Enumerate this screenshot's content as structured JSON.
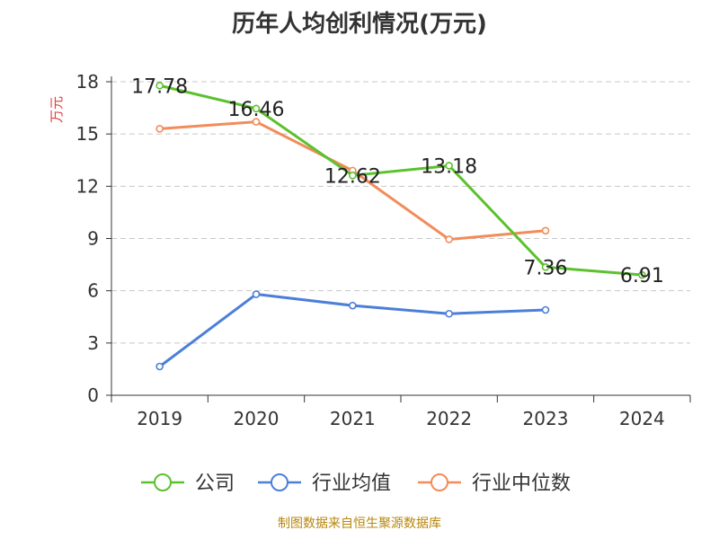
{
  "chart_data": {
    "type": "line",
    "title": "历年人均创利情况(万元)",
    "ylabel": "万元",
    "xlabel": "",
    "ylim": [
      0,
      18
    ],
    "yticks": [
      0,
      3,
      6,
      9,
      12,
      15,
      18
    ],
    "categories": [
      "2019",
      "2020",
      "2021",
      "2022",
      "2023",
      "2024"
    ],
    "grid": true,
    "legend_position": "bottom",
    "series": [
      {
        "name": "公司",
        "color": "#5cc12e",
        "values": [
          17.78,
          16.46,
          12.62,
          13.18,
          7.36,
          6.91
        ],
        "labels": [
          "17.78",
          "16.46",
          "12.62",
          "13.18",
          "7.36",
          "6.91"
        ]
      },
      {
        "name": "行业均值",
        "color": "#4c7fd8",
        "values": [
          1.65,
          5.8,
          5.15,
          4.68,
          4.9,
          null
        ]
      },
      {
        "name": "行业中位数",
        "color": "#f28c5a",
        "values": [
          15.3,
          15.7,
          12.9,
          8.95,
          9.45,
          null
        ]
      }
    ]
  },
  "footer": {
    "source": "制图数据来自恒生聚源数据库"
  }
}
